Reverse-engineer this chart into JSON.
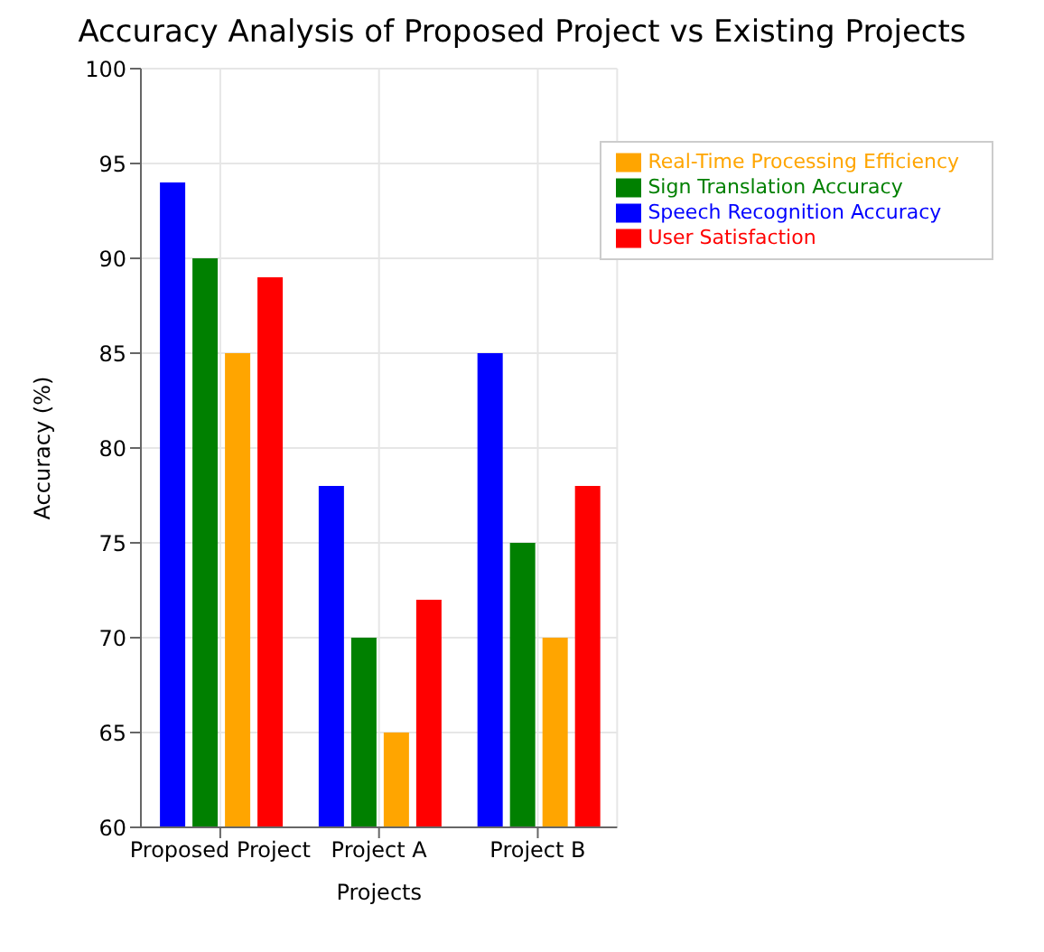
{
  "chart_data": {
    "type": "bar",
    "title": "Accuracy Analysis of Proposed Project vs Existing Projects",
    "xlabel": "Projects",
    "ylabel": "Accuracy (%)",
    "categories": [
      "Proposed Project",
      "Project A",
      "Project B"
    ],
    "series": [
      {
        "name": "Speech Recognition Accuracy",
        "color": "#0000ff",
        "values": [
          94,
          78,
          85
        ]
      },
      {
        "name": "Sign Translation Accuracy",
        "color": "#008000",
        "values": [
          90,
          70,
          75
        ]
      },
      {
        "name": "Real-Time Processing Efficiency",
        "color": "#ffa500",
        "values": [
          85,
          65,
          70
        ]
      },
      {
        "name": "User Satisfaction",
        "color": "#ff0000",
        "values": [
          89,
          72,
          78
        ]
      }
    ],
    "ylim": [
      60,
      100
    ],
    "yticks": [
      60,
      65,
      70,
      75,
      80,
      85,
      90,
      95,
      100
    ],
    "grid": true,
    "legend": "top right"
  }
}
